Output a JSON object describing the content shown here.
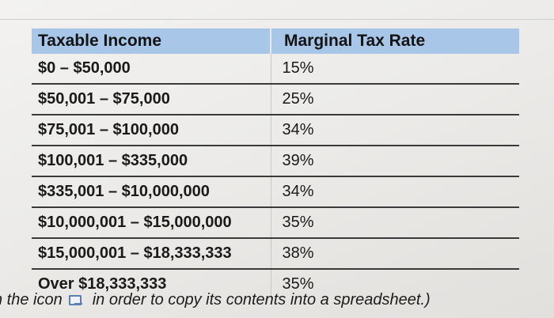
{
  "table": {
    "headers": [
      "Taxable Income",
      "Marginal Tax Rate"
    ],
    "rows": [
      {
        "income": "$0 – $50,000",
        "rate": "15%"
      },
      {
        "income": "$50,001 – $75,000",
        "rate": "25%"
      },
      {
        "income": "$75,001 – $100,000",
        "rate": "34%"
      },
      {
        "income": "$100,001 – $335,000",
        "rate": "39%"
      },
      {
        "income": "$335,001 – $10,000,000",
        "rate": "34%"
      },
      {
        "income": "$10,000,001 – $15,000,000",
        "rate": "35%"
      },
      {
        "income": "$15,000,001 – $18,333,333",
        "rate": "38%"
      },
      {
        "income": "Over $18,333,333",
        "rate": "35%"
      }
    ]
  },
  "footer": {
    "before_icon": "n the icon",
    "after_icon": "in order to copy its contents into a spreadsheet.)",
    "icon": "copy-to-spreadsheet-icon"
  },
  "colors": {
    "header_bg": "#a8c6e8",
    "icon": "#5a7fb0"
  }
}
